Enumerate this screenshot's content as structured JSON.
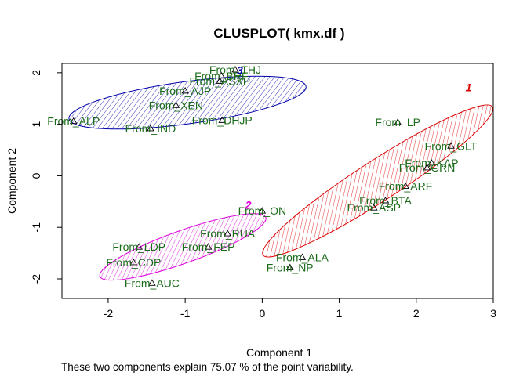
{
  "chart_data": {
    "type": "scatter",
    "title": "CLUSPLOT( kmx.df )",
    "xlabel": "Component 1",
    "ylabel": "Component 2",
    "subtitle": "These two components explain 75.07 % of the point variability.",
    "xlim": [
      -2.6,
      3.0
    ],
    "ylim": [
      -2.38,
      2.18
    ],
    "xticks": [
      -2,
      -1,
      0,
      1,
      2,
      3
    ],
    "yticks": [
      -2,
      -1,
      0,
      1,
      2
    ],
    "xtick_labels": [
      "-2",
      "-1",
      "0",
      "1",
      "2",
      "3"
    ],
    "ytick_labels": [
      "-2",
      "-1",
      "0",
      "1",
      "2"
    ],
    "grid": false,
    "legend": "none",
    "colors": {
      "cluster_1": "#dd0000",
      "cluster_2": "#dd00dd",
      "cluster_3": "#0000aa",
      "point_labels": "#1a6b1a",
      "axis": "#000000"
    },
    "clusters": [
      {
        "label": "1",
        "color": "#dd0000",
        "label_x": 2.68,
        "label_y": 1.72,
        "ellipse": {
          "cx": 1.5,
          "cy": -0.1,
          "rx": 2.07,
          "ry": 0.31,
          "angle_deg": 44
        }
      },
      {
        "label": "2",
        "color": "#dd00dd",
        "label_x": -0.18,
        "label_y": -0.56,
        "ellipse": {
          "cx": -1.03,
          "cy": -1.38,
          "rx": 1.22,
          "ry": 0.28,
          "angle_deg": 28
        }
      },
      {
        "label": "3",
        "color": "#0000aa",
        "label_x": -0.29,
        "label_y": 2.05,
        "ellipse": {
          "cx": -0.97,
          "cy": 1.42,
          "rx": 1.57,
          "ry": 0.4,
          "angle_deg": 11.5
        }
      }
    ],
    "points": [
      {
        "label": "From_LP",
        "x": 1.76,
        "y": 1.04,
        "cluster": 1
      },
      {
        "label": "From_GLT",
        "x": 2.45,
        "y": 0.58,
        "cluster": 1
      },
      {
        "label": "From_KAP",
        "x": 2.2,
        "y": 0.25,
        "cluster": 1
      },
      {
        "label": "From_GRN",
        "x": 2.14,
        "y": 0.16,
        "cluster": 1
      },
      {
        "label": "From_ARF",
        "x": 1.86,
        "y": -0.2,
        "cluster": 1
      },
      {
        "label": "From_BTA",
        "x": 1.6,
        "y": -0.48,
        "cluster": 1
      },
      {
        "label": "From_ASP",
        "x": 1.45,
        "y": -0.62,
        "cluster": 1
      },
      {
        "label": "From_ALA",
        "x": 0.52,
        "y": -1.58,
        "cluster": 1
      },
      {
        "label": "From_NP",
        "x": 0.36,
        "y": -1.78,
        "cluster": 1
      },
      {
        "label": "From_ON",
        "x": 0.0,
        "y": -0.68,
        "cluster": 2
      },
      {
        "label": "From_RUA",
        "x": -0.45,
        "y": -1.12,
        "cluster": 2
      },
      {
        "label": "From_FEP",
        "x": -0.7,
        "y": -1.38,
        "cluster": 2
      },
      {
        "label": "From_LDP",
        "x": -1.6,
        "y": -1.38,
        "cluster": 2
      },
      {
        "label": "From_CDP",
        "x": -1.67,
        "y": -1.68,
        "cluster": 2
      },
      {
        "label": "From_AUC",
        "x": -1.43,
        "y": -2.08,
        "cluster": 2
      },
      {
        "label": "From_THJ",
        "x": -0.35,
        "y": 2.06,
        "cluster": 3
      },
      {
        "label": "From_BRF",
        "x": -0.53,
        "y": 1.94,
        "cluster": 3
      },
      {
        "label": "From_ASXP",
        "x": -0.55,
        "y": 1.84,
        "cluster": 3
      },
      {
        "label": "From_AJP",
        "x": -1.0,
        "y": 1.65,
        "cluster": 3
      },
      {
        "label": "From_XEN",
        "x": -1.12,
        "y": 1.37,
        "cluster": 3
      },
      {
        "label": "From_DHJP",
        "x": -0.52,
        "y": 1.08,
        "cluster": 3
      },
      {
        "label": "From_ALP",
        "x": -2.45,
        "y": 1.06,
        "cluster": 3
      },
      {
        "label": "From_IND",
        "x": -1.45,
        "y": 0.92,
        "cluster": 3
      }
    ]
  }
}
